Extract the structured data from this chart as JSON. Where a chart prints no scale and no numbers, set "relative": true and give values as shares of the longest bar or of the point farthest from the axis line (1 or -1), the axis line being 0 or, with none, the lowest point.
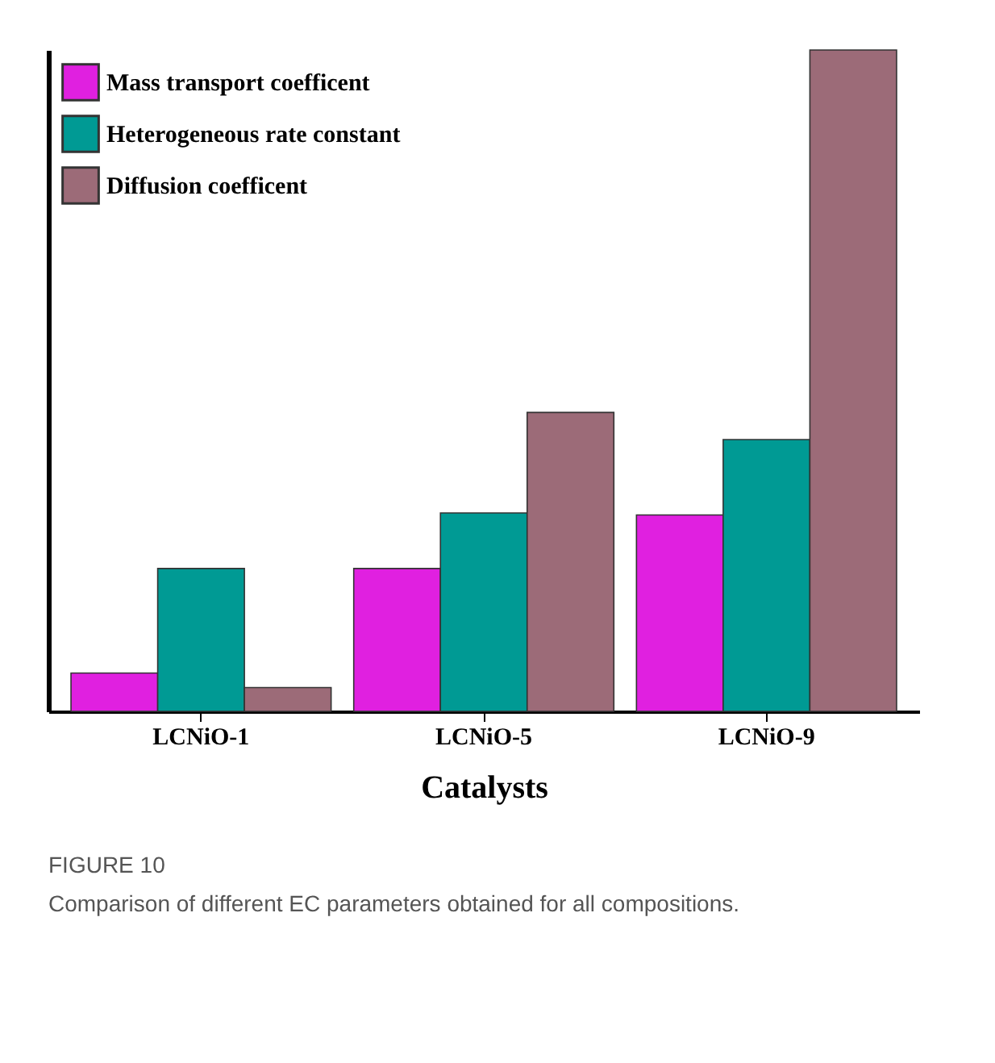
{
  "chart_data": {
    "type": "bar",
    "relative": true,
    "xlabel": "Catalysts",
    "categories": [
      "LCNiO-1",
      "LCNiO-5",
      "LCNiO-9"
    ],
    "series": [
      {
        "name": "Mass transport coefficent",
        "color": "#e020e0",
        "values": [
          0.058,
          0.216,
          0.297
        ]
      },
      {
        "name": "Heterogeneous rate constant",
        "color": "#009a94",
        "values": [
          0.216,
          0.3,
          0.411
        ]
      },
      {
        "name": "Diffusion coefficent",
        "color": "#9c6b78",
        "values": [
          0.036,
          0.452,
          1.0
        ]
      }
    ],
    "legend": "top left",
    "grid": false,
    "annotations": [
      "FIGURE 10",
      "Comparison of different EC parameters obtained for all compositions."
    ]
  }
}
